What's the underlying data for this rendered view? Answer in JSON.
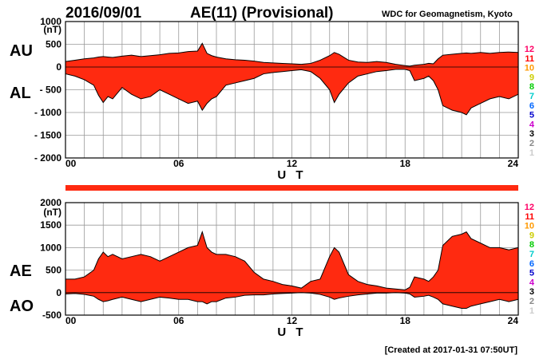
{
  "header": {
    "date": "2016/09/01",
    "title": "AE(11) (Provisional)",
    "source": "WDC for Geomagnetism, Kyoto",
    "created": "[Created at 2017-01-31 07:50UT]"
  },
  "colors": {
    "fill": "#ff2a10",
    "fill_dark": "#b01000",
    "grid": "#999999",
    "levels": [
      "#cccccc",
      "#888888",
      "#000000",
      "#cc00cc",
      "#0000cc",
      "#0066ff",
      "#00cccc",
      "#00cc00",
      "#cccc00",
      "#ff9900",
      "#ff0000",
      "#ff0066"
    ]
  },
  "levels": [
    "1",
    "2",
    "3",
    "4",
    "5",
    "6",
    "7",
    "8",
    "9",
    "10",
    "11",
    "12"
  ],
  "chart_data": [
    {
      "type": "area",
      "panel": "top",
      "series_names": [
        "AU",
        "AL"
      ],
      "xlabel": "U T",
      "unit": "(nT)",
      "ylim": [
        -2000,
        1000
      ],
      "yticks": [
        "1000",
        "500",
        "0",
        "- 500",
        "- 1000",
        "- 1500",
        "- 2000"
      ],
      "ytick_values": [
        1000,
        500,
        0,
        -500,
        -1000,
        -1500,
        -2000
      ],
      "xlim": [
        0,
        24
      ],
      "xticks": [
        "00",
        "06",
        "12",
        "18",
        "24"
      ],
      "xtick_values": [
        0,
        6,
        12,
        18,
        24
      ],
      "x": [
        0,
        0.5,
        1,
        1.5,
        1.75,
        2,
        2.25,
        2.5,
        3,
        3.5,
        4,
        4.5,
        5,
        5.5,
        6,
        6.5,
        7,
        7.25,
        7.5,
        7.75,
        8,
        8.5,
        9,
        9.5,
        10,
        10.5,
        11,
        11.5,
        12,
        12.5,
        13,
        13.5,
        14,
        14.25,
        14.5,
        15,
        15.5,
        16,
        16.5,
        17,
        17.5,
        18,
        18.25,
        18.5,
        19,
        19.25,
        19.5,
        19.75,
        20,
        20.5,
        21,
        21.25,
        21.5,
        22,
        22.5,
        23,
        23.5,
        24
      ],
      "series": [
        {
          "name": "AU",
          "values": [
            120,
            150,
            180,
            200,
            220,
            230,
            220,
            210,
            240,
            260,
            230,
            250,
            270,
            300,
            310,
            340,
            350,
            520,
            300,
            250,
            220,
            180,
            160,
            150,
            130,
            100,
            90,
            80,
            70,
            60,
            80,
            150,
            250,
            320,
            280,
            150,
            110,
            100,
            120,
            100,
            60,
            30,
            20,
            40,
            60,
            80,
            70,
            180,
            260,
            280,
            300,
            310,
            300,
            320,
            300,
            320,
            330,
            320
          ]
        },
        {
          "name": "AL",
          "values": [
            -150,
            -200,
            -280,
            -400,
            -620,
            -780,
            -650,
            -700,
            -450,
            -600,
            -700,
            -650,
            -500,
            -600,
            -700,
            -800,
            -750,
            -950,
            -800,
            -700,
            -650,
            -400,
            -350,
            -300,
            -250,
            -150,
            -120,
            -100,
            -80,
            -60,
            -100,
            -250,
            -500,
            -780,
            -600,
            -350,
            -200,
            -150,
            -100,
            -80,
            -50,
            -50,
            -80,
            -300,
            -250,
            -200,
            -300,
            -500,
            -850,
            -950,
            -1000,
            -1050,
            -900,
            -800,
            -700,
            -650,
            -700,
            -600
          ]
        }
      ],
      "side_labels": [
        "AU",
        "AL"
      ]
    },
    {
      "type": "area",
      "panel": "bottom",
      "series_names": [
        "AE",
        "AO"
      ],
      "xlabel": "U T",
      "unit": "(nT)",
      "ylim": [
        -500,
        2000
      ],
      "yticks": [
        "2000",
        "1500",
        "1000",
        "500",
        "0",
        "-500"
      ],
      "ytick_values": [
        2000,
        1500,
        1000,
        500,
        0,
        -500
      ],
      "xlim": [
        0,
        24
      ],
      "xticks": [
        "00",
        "06",
        "12",
        "18",
        "24"
      ],
      "xtick_values": [
        0,
        6,
        12,
        18,
        24
      ],
      "x": [
        0,
        0.5,
        1,
        1.5,
        1.75,
        2,
        2.25,
        2.5,
        3,
        3.5,
        4,
        4.5,
        5,
        5.5,
        6,
        6.5,
        7,
        7.25,
        7.5,
        7.75,
        8,
        8.5,
        9,
        9.5,
        10,
        10.5,
        11,
        11.5,
        12,
        12.5,
        13,
        13.5,
        14,
        14.25,
        14.5,
        15,
        15.5,
        16,
        16.5,
        17,
        17.5,
        18,
        18.25,
        18.5,
        19,
        19.25,
        19.5,
        19.75,
        20,
        20.5,
        21,
        21.25,
        21.5,
        22,
        22.5,
        23,
        23.5,
        24
      ],
      "series": [
        {
          "name": "AE",
          "values": [
            300,
            300,
            350,
            500,
            750,
            900,
            800,
            850,
            750,
            800,
            850,
            800,
            700,
            800,
            900,
            1000,
            1050,
            1350,
            1000,
            900,
            850,
            850,
            800,
            700,
            450,
            300,
            250,
            180,
            150,
            100,
            250,
            300,
            800,
            1000,
            900,
            400,
            250,
            180,
            150,
            100,
            80,
            60,
            120,
            350,
            300,
            250,
            350,
            500,
            1050,
            1250,
            1300,
            1350,
            1200,
            1100,
            1000,
            1000,
            950,
            1000
          ]
        },
        {
          "name": "AO",
          "values": [
            -30,
            -20,
            -40,
            -80,
            -150,
            -200,
            -180,
            -150,
            -100,
            -150,
            -200,
            -150,
            -100,
            -120,
            -150,
            -150,
            -200,
            -200,
            -250,
            -200,
            -200,
            -120,
            -100,
            -60,
            -50,
            -50,
            -30,
            -20,
            -10,
            0,
            -10,
            -40,
            -100,
            -150,
            -120,
            -80,
            -50,
            -30,
            -10,
            -10,
            0,
            -10,
            -30,
            -100,
            -80,
            -60,
            -100,
            -150,
            -250,
            -300,
            -350,
            -350,
            -300,
            -250,
            -200,
            -150,
            -200,
            -150
          ]
        }
      ],
      "side_labels": [
        "AE",
        "AO"
      ]
    }
  ]
}
